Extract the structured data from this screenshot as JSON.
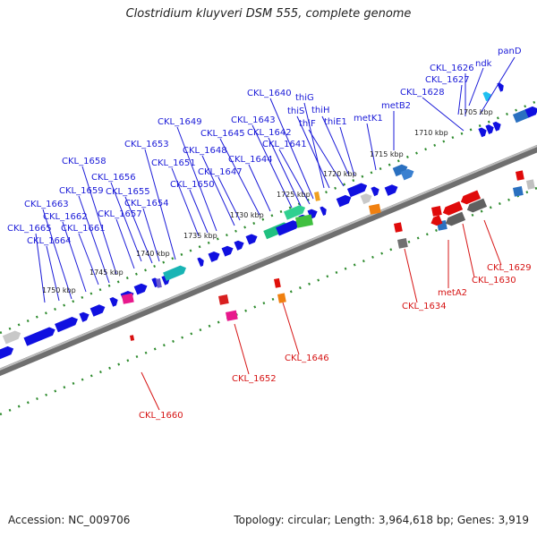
{
  "title": "Clostridium kluyveri DSM 555, complete genome",
  "accession": "Accession: NC_009706",
  "topology": "Topology: circular; Length: 3,964,618 bp; Genes: 3,919",
  "colors": {
    "forward_label": "#1b1bd8",
    "reverse_label": "#d61414",
    "backbone": "#8a8a8a",
    "tick": "#2e8b2e",
    "forward_gene": "#1010e0",
    "reverse_gene": "#e00a0a"
  },
  "ruler_ticks": [
    "1705 kbp",
    "1710 kbp",
    "1715 kbp",
    "1720 kbp",
    "1725 kbp",
    "1730 kbp",
    "1735 kbp",
    "1740 kbp",
    "1745 kbp",
    "1750 kbp"
  ],
  "forward_labels": [
    "panD",
    "ndk",
    "CKL_1626",
    "CKL_1627",
    "CKL_1628",
    "metB2",
    "metK1",
    "thiE1",
    "thiH",
    "thiF",
    "thiS",
    "thiG",
    "CKL_1640",
    "CKL_1641",
    "CKL_1642",
    "CKL_1643",
    "CKL_1644",
    "CKL_1645",
    "CKL_1647",
    "CKL_1648",
    "CKL_1649",
    "CKL_1650",
    "CKL_1651",
    "CKL_1653",
    "CKL_1654",
    "CKL_1655",
    "CKL_1656",
    "CKL_1657",
    "CKL_1658",
    "CKL_1659",
    "CKL_1661",
    "CKL_1662",
    "CKL_1663",
    "CKL_1664",
    "CKL_1665"
  ],
  "reverse_labels": [
    "CKL_1629",
    "CKL_1630",
    "metA2",
    "CKL_1634",
    "CKL_1646",
    "CKL_1652",
    "CKL_1660"
  ]
}
